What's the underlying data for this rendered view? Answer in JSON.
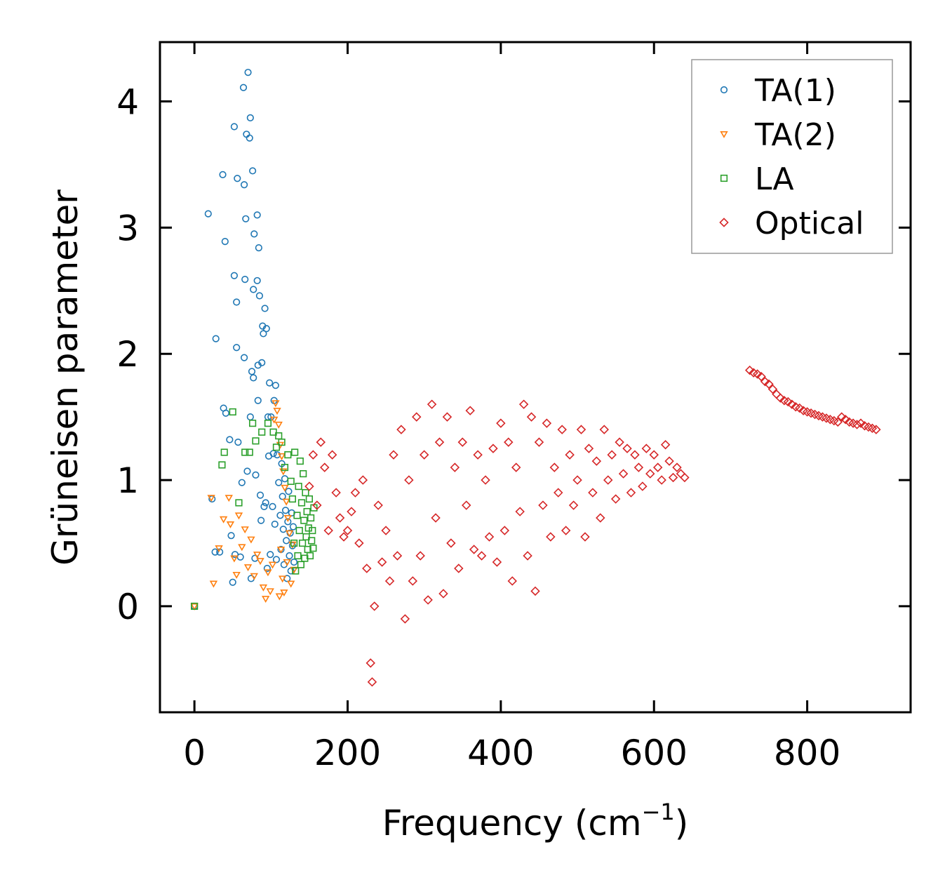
{
  "chart_data": {
    "type": "scatter",
    "title": "",
    "xlabel": "Frequency (cm",
    "xlabel_sup": "−1",
    "xlabel_end": ")",
    "ylabel": "Grüneisen parameter",
    "xlim": [
      -45,
      935
    ],
    "ylim": [
      -0.84,
      4.47
    ],
    "xticks": [
      0,
      200,
      400,
      600,
      800
    ],
    "yticks": [
      0,
      1,
      2,
      3,
      4
    ],
    "legend_position": "top-right",
    "series": [
      {
        "name": "TA(1)",
        "marker": "circle",
        "color": "#1f77b4",
        "points": [
          [
            0,
            0
          ],
          [
            18,
            3.11
          ],
          [
            23,
            0.85
          ],
          [
            27,
            0.43
          ],
          [
            28,
            2.12
          ],
          [
            33,
            0.43
          ],
          [
            37,
            3.42
          ],
          [
            38,
            1.57
          ],
          [
            40,
            2.89
          ],
          [
            41,
            1.53
          ],
          [
            46,
            1.32
          ],
          [
            48,
            0.56
          ],
          [
            50,
            0.19
          ],
          [
            52,
            3.8
          ],
          [
            52,
            2.62
          ],
          [
            53,
            0.41
          ],
          [
            55,
            2.05
          ],
          [
            55,
            2.41
          ],
          [
            56,
            3.39
          ],
          [
            57,
            1.3
          ],
          [
            60,
            0.39
          ],
          [
            62,
            0.98
          ],
          [
            64,
            4.11
          ],
          [
            65,
            3.34
          ],
          [
            65,
            1.97
          ],
          [
            66,
            2.59
          ],
          [
            67,
            3.07
          ],
          [
            68,
            3.74
          ],
          [
            69,
            1.07
          ],
          [
            70,
            4.23
          ],
          [
            72,
            3.71
          ],
          [
            73,
            3.87
          ],
          [
            73,
            1.5
          ],
          [
            74,
            0.22
          ],
          [
            75,
            1.86
          ],
          [
            76,
            3.45
          ],
          [
            77,
            1.81
          ],
          [
            77,
            2.51
          ],
          [
            78,
            2.95
          ],
          [
            79,
            0.38
          ],
          [
            80,
            1.04
          ],
          [
            82,
            3.1
          ],
          [
            82,
            2.58
          ],
          [
            83,
            1.91
          ],
          [
            83,
            1.63
          ],
          [
            84,
            2.84
          ],
          [
            85,
            2.46
          ],
          [
            86,
            0.88
          ],
          [
            87,
            0.68
          ],
          [
            88,
            1.93
          ],
          [
            89,
            2.22
          ],
          [
            90,
            2.16
          ],
          [
            91,
            0.79
          ],
          [
            92,
            2.36
          ],
          [
            93,
            0.82
          ],
          [
            94,
            2.2
          ],
          [
            95,
            0.3
          ],
          [
            96,
            1.5
          ],
          [
            97,
            1.19
          ],
          [
            98,
            1.77
          ],
          [
            99,
            0.41
          ],
          [
            100,
            1.5
          ],
          [
            102,
            0.79
          ],
          [
            103,
            1.21
          ],
          [
            104,
            1.63
          ],
          [
            105,
            0.65
          ],
          [
            106,
            1.75
          ],
          [
            107,
            0.37
          ],
          [
            108,
            1.2
          ],
          [
            110,
            0.98
          ],
          [
            112,
            0.72
          ],
          [
            113,
            0.45
          ],
          [
            114,
            1.13
          ],
          [
            115,
            0.87
          ],
          [
            116,
            0.61
          ],
          [
            117,
            0.33
          ],
          [
            118,
            1.01
          ],
          [
            119,
            0.76
          ],
          [
            120,
            0.52
          ],
          [
            121,
            0.22
          ],
          [
            122,
            0.67
          ],
          [
            123,
            0.91
          ],
          [
            124,
            0.4
          ],
          [
            125,
            0.58
          ],
          [
            126,
            0.28
          ],
          [
            127,
            0.74
          ],
          [
            128,
            0.48
          ],
          [
            129,
            0.63
          ],
          [
            130,
            0.35
          ]
        ]
      },
      {
        "name": "TA(2)",
        "marker": "triangle-down",
        "color": "#ff7f0e",
        "points": [
          [
            0,
            0
          ],
          [
            22,
            0.86
          ],
          [
            25,
            0.18
          ],
          [
            32,
            0.46
          ],
          [
            38,
            0.69
          ],
          [
            45,
            0.86
          ],
          [
            47,
            0.65
          ],
          [
            52,
            0.38
          ],
          [
            55,
            0.25
          ],
          [
            58,
            0.72
          ],
          [
            62,
            0.47
          ],
          [
            66,
            0.61
          ],
          [
            70,
            0.31
          ],
          [
            74,
            0.53
          ],
          [
            78,
            0.24
          ],
          [
            82,
            0.41
          ],
          [
            86,
            0.36
          ],
          [
            90,
            0.15
          ],
          [
            93,
            0.06
          ],
          [
            96,
            0.27
          ],
          [
            99,
            0.12
          ],
          [
            102,
            0.33
          ],
          [
            104,
            1.48
          ],
          [
            106,
            1.61
          ],
          [
            108,
            1.55
          ],
          [
            110,
            1.44
          ],
          [
            111,
            0.08
          ],
          [
            112,
            1.28
          ],
          [
            113,
            0.45
          ],
          [
            114,
            1.19
          ],
          [
            115,
            0.22
          ],
          [
            116,
            1.07
          ],
          [
            117,
            0.11
          ],
          [
            118,
            0.94
          ],
          [
            120,
            0.83
          ],
          [
            121,
            0.35
          ],
          [
            122,
            0.7
          ],
          [
            124,
            0.58
          ],
          [
            126,
            0.18
          ],
          [
            128,
            0.49
          ],
          [
            130,
            0.29
          ]
        ]
      },
      {
        "name": "LA",
        "marker": "square",
        "color": "#2ca02c",
        "points": [
          [
            0,
            0
          ],
          [
            36,
            1.12
          ],
          [
            39,
            1.22
          ],
          [
            50,
            1.54
          ],
          [
            58,
            0.82
          ],
          [
            66,
            1.22
          ],
          [
            72,
            1.22
          ],
          [
            76,
            1.45
          ],
          [
            80,
            1.31
          ],
          [
            88,
            1.38
          ],
          [
            96,
            1.45
          ],
          [
            103,
            1.38
          ],
          [
            107,
            1.26
          ],
          [
            110,
            1.35
          ],
          [
            114,
            1.3
          ],
          [
            118,
            1.1
          ],
          [
            122,
            1.2
          ],
          [
            126,
            0.99
          ],
          [
            128,
            0.85
          ],
          [
            130,
            0.5
          ],
          [
            131,
            1.22
          ],
          [
            132,
            0.28
          ],
          [
            134,
            0.72
          ],
          [
            135,
            0.4
          ],
          [
            136,
            0.95
          ],
          [
            137,
            0.6
          ],
          [
            138,
            1.15
          ],
          [
            139,
            0.33
          ],
          [
            140,
            0.82
          ],
          [
            141,
            0.5
          ],
          [
            142,
            1.05
          ],
          [
            143,
            0.68
          ],
          [
            144,
            0.38
          ],
          [
            145,
            0.9
          ],
          [
            146,
            0.55
          ],
          [
            147,
            0.75
          ],
          [
            148,
            0.45
          ],
          [
            149,
            0.62
          ],
          [
            150,
            0.85
          ],
          [
            151,
            0.4
          ],
          [
            152,
            0.7
          ],
          [
            153,
            0.52
          ],
          [
            154,
            0.6
          ],
          [
            155,
            0.46
          ],
          [
            156,
            0.78
          ]
        ]
      },
      {
        "name": "Optical",
        "marker": "diamond",
        "color": "#d62728",
        "points": [
          [
            150,
            0.95
          ],
          [
            155,
            1.2
          ],
          [
            160,
            0.8
          ],
          [
            165,
            1.3
          ],
          [
            170,
            1.1
          ],
          [
            175,
            0.6
          ],
          [
            180,
            1.2
          ],
          [
            185,
            0.9
          ],
          [
            190,
            0.7
          ],
          [
            195,
            0.55
          ],
          [
            200,
            0.6
          ],
          [
            205,
            0.75
          ],
          [
            210,
            0.9
          ],
          [
            215,
            0.5
          ],
          [
            220,
            1.0
          ],
          [
            225,
            0.3
          ],
          [
            230,
            -0.45
          ],
          [
            232,
            -0.6
          ],
          [
            235,
            0.0
          ],
          [
            240,
            0.8
          ],
          [
            245,
            0.35
          ],
          [
            250,
            0.6
          ],
          [
            255,
            0.2
          ],
          [
            260,
            1.2
          ],
          [
            265,
            0.4
          ],
          [
            270,
            1.4
          ],
          [
            275,
            -0.1
          ],
          [
            280,
            1.0
          ],
          [
            285,
            0.2
          ],
          [
            290,
            1.5
          ],
          [
            295,
            0.4
          ],
          [
            300,
            1.2
          ],
          [
            305,
            0.05
          ],
          [
            310,
            1.6
          ],
          [
            315,
            0.7
          ],
          [
            320,
            1.3
          ],
          [
            325,
            0.1
          ],
          [
            330,
            1.5
          ],
          [
            335,
            0.5
          ],
          [
            340,
            1.1
          ],
          [
            345,
            0.3
          ],
          [
            350,
            1.3
          ],
          [
            355,
            0.8
          ],
          [
            360,
            1.55
          ],
          [
            365,
            0.45
          ],
          [
            370,
            1.2
          ],
          [
            375,
            0.4
          ],
          [
            380,
            1.0
          ],
          [
            385,
            0.55
          ],
          [
            390,
            1.25
          ],
          [
            395,
            0.35
          ],
          [
            400,
            1.45
          ],
          [
            405,
            0.6
          ],
          [
            410,
            1.3
          ],
          [
            415,
            0.2
          ],
          [
            420,
            1.1
          ],
          [
            425,
            0.75
          ],
          [
            430,
            1.6
          ],
          [
            435,
            0.4
          ],
          [
            440,
            1.5
          ],
          [
            445,
            0.12
          ],
          [
            450,
            1.3
          ],
          [
            455,
            0.8
          ],
          [
            460,
            1.45
          ],
          [
            465,
            0.55
          ],
          [
            470,
            1.1
          ],
          [
            475,
            0.9
          ],
          [
            480,
            1.4
          ],
          [
            485,
            0.6
          ],
          [
            490,
            1.2
          ],
          [
            495,
            0.8
          ],
          [
            500,
            1.0
          ],
          [
            505,
            1.4
          ],
          [
            510,
            0.55
          ],
          [
            515,
            1.25
          ],
          [
            520,
            0.9
          ],
          [
            525,
            1.15
          ],
          [
            530,
            0.7
          ],
          [
            535,
            1.4
          ],
          [
            540,
            1.0
          ],
          [
            545,
            1.2
          ],
          [
            550,
            0.85
          ],
          [
            555,
            1.3
          ],
          [
            560,
            1.05
          ],
          [
            565,
            1.25
          ],
          [
            570,
            0.9
          ],
          [
            575,
            1.2
          ],
          [
            580,
            1.1
          ],
          [
            585,
            0.95
          ],
          [
            590,
            1.25
          ],
          [
            595,
            1.05
          ],
          [
            600,
            1.2
          ],
          [
            605,
            1.1
          ],
          [
            610,
            1.0
          ],
          [
            615,
            1.28
          ],
          [
            620,
            1.15
          ],
          [
            625,
            1.02
          ],
          [
            630,
            1.1
          ],
          [
            635,
            1.05
          ],
          [
            640,
            1.02
          ],
          [
            725,
            1.87
          ],
          [
            730,
            1.85
          ],
          [
            735,
            1.84
          ],
          [
            740,
            1.82
          ],
          [
            745,
            1.78
          ],
          [
            750,
            1.76
          ],
          [
            755,
            1.72
          ],
          [
            760,
            1.68
          ],
          [
            765,
            1.65
          ],
          [
            770,
            1.63
          ],
          [
            775,
            1.62
          ],
          [
            780,
            1.6
          ],
          [
            785,
            1.58
          ],
          [
            790,
            1.57
          ],
          [
            795,
            1.55
          ],
          [
            800,
            1.54
          ],
          [
            805,
            1.53
          ],
          [
            810,
            1.52
          ],
          [
            815,
            1.51
          ],
          [
            820,
            1.5
          ],
          [
            825,
            1.49
          ],
          [
            830,
            1.48
          ],
          [
            835,
            1.47
          ],
          [
            840,
            1.46
          ],
          [
            845,
            1.5
          ],
          [
            850,
            1.48
          ],
          [
            855,
            1.46
          ],
          [
            860,
            1.45
          ],
          [
            865,
            1.44
          ],
          [
            870,
            1.45
          ],
          [
            875,
            1.43
          ],
          [
            880,
            1.42
          ],
          [
            885,
            1.41
          ],
          [
            890,
            1.4
          ]
        ]
      }
    ]
  }
}
